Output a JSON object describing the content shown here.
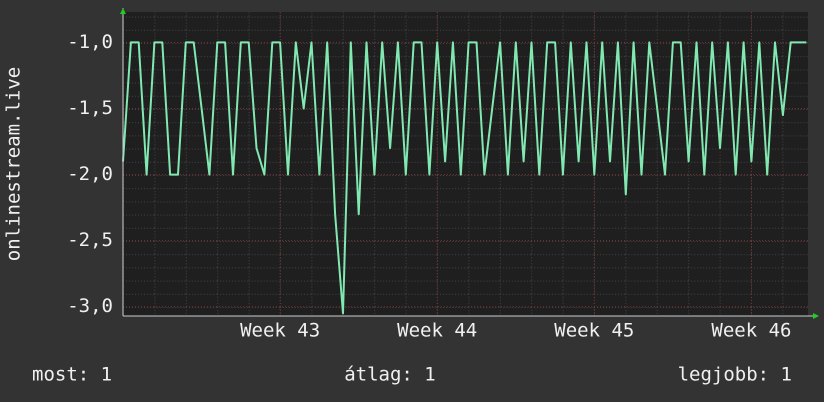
{
  "chart_data": {
    "type": "line",
    "ylabel": "onlinestream.live",
    "x": [
      42,
      42.05,
      42.1,
      42.15,
      42.2,
      42.25,
      42.3,
      42.35,
      42.4,
      42.45,
      42.5,
      42.55,
      42.6,
      42.65,
      42.7,
      42.75,
      42.8,
      42.85,
      42.9,
      42.95,
      43,
      43.05,
      43.1,
      43.15,
      43.2,
      43.25,
      43.3,
      43.35,
      43.4,
      43.45,
      43.5,
      43.55,
      43.6,
      43.65,
      43.7,
      43.75,
      43.8,
      43.85,
      43.9,
      43.95,
      44,
      44.05,
      44.1,
      44.15,
      44.2,
      44.25,
      44.3,
      44.35,
      44.4,
      44.45,
      44.5,
      44.55,
      44.6,
      44.65,
      44.7,
      44.75,
      44.8,
      44.85,
      44.9,
      44.95,
      45,
      45.05,
      45.1,
      45.15,
      45.2,
      45.25,
      45.3,
      45.35,
      45.4,
      45.45,
      45.5,
      45.55,
      45.6,
      45.65,
      45.7,
      45.75,
      45.8,
      45.85,
      45.9,
      45.95,
      46,
      46.05,
      46.1,
      46.15,
      46.2,
      46.25,
      46.3,
      46.35
    ],
    "series": [
      {
        "color": "#80e8b0",
        "values": [
          -1.9,
          -1,
          -1,
          -2,
          -1,
          -1,
          -2,
          -2,
          -1,
          -1,
          -1.5,
          -2,
          -1,
          -1,
          -2,
          -1,
          -1,
          -1.8,
          -2,
          -1,
          -1,
          -2,
          -1,
          -1.5,
          -1,
          -2,
          -1,
          -2.3,
          -3.05,
          -1,
          -2.3,
          -1,
          -2,
          -1,
          -1.8,
          -1,
          -2,
          -1,
          -1,
          -2,
          -1,
          -1.9,
          -1,
          -2,
          -1,
          -1,
          -2,
          -1.5,
          -1,
          -2,
          -1,
          -1.9,
          -1,
          -2,
          -1,
          -1,
          -2,
          -1,
          -1.9,
          -1,
          -2,
          -1,
          -1.9,
          -1,
          -2.15,
          -1,
          -2,
          -1,
          -1.5,
          -2,
          -1,
          -1,
          -1.9,
          -1,
          -2,
          -1,
          -1.8,
          -1,
          -2,
          -1,
          -1.9,
          -1,
          -2,
          -1,
          -1.55,
          -1,
          -1,
          -1
        ]
      }
    ],
    "xlim": [
      42,
      46.36
    ],
    "ylim": [
      -3.07,
      -0.77
    ],
    "xticks": [
      {
        "value": 43,
        "label": "Week 43"
      },
      {
        "value": 44,
        "label": "Week 44"
      },
      {
        "value": 45,
        "label": "Week 45"
      },
      {
        "value": 46,
        "label": "Week 46"
      }
    ],
    "yticks": [
      {
        "value": -3,
        "label": "-3,0"
      },
      {
        "value": -2.5,
        "label": "-2,5"
      },
      {
        "value": -2,
        "label": "-2,0"
      },
      {
        "value": -1.5,
        "label": "-1,5"
      },
      {
        "value": -1,
        "label": "-1,0"
      }
    ],
    "grid": true,
    "legend": [
      "most: 1",
      "átlag: 1",
      "legjobb: 1"
    ]
  }
}
